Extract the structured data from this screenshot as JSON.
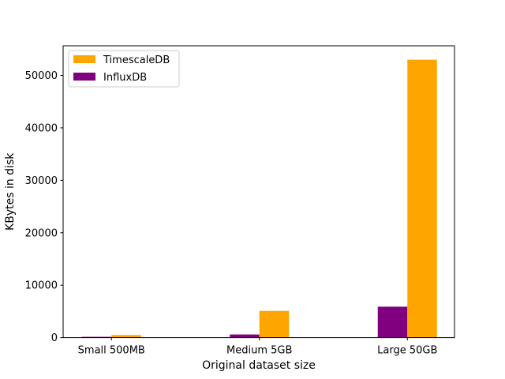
{
  "chart_data": {
    "type": "bar",
    "title": "",
    "xlabel": "Original dataset size",
    "ylabel": "KBytes in disk",
    "categories": [
      "Small 500MB",
      "Medium 5GB",
      "Large 50GB"
    ],
    "series": [
      {
        "name": "InfluxDB",
        "color": "#800080",
        "values": [
          150,
          600,
          5900
        ]
      },
      {
        "name": "TimescaleDB",
        "color": "#FFA500",
        "values": [
          500,
          5100,
          53000
        ]
      }
    ],
    "ylim": [
      0,
      55650
    ],
    "yticks": [
      0,
      10000,
      20000,
      30000,
      40000,
      50000
    ],
    "legend": {
      "position": "top-left",
      "entries": [
        "TimescaleDB",
        "InfluxDB"
      ]
    },
    "grid": false
  }
}
